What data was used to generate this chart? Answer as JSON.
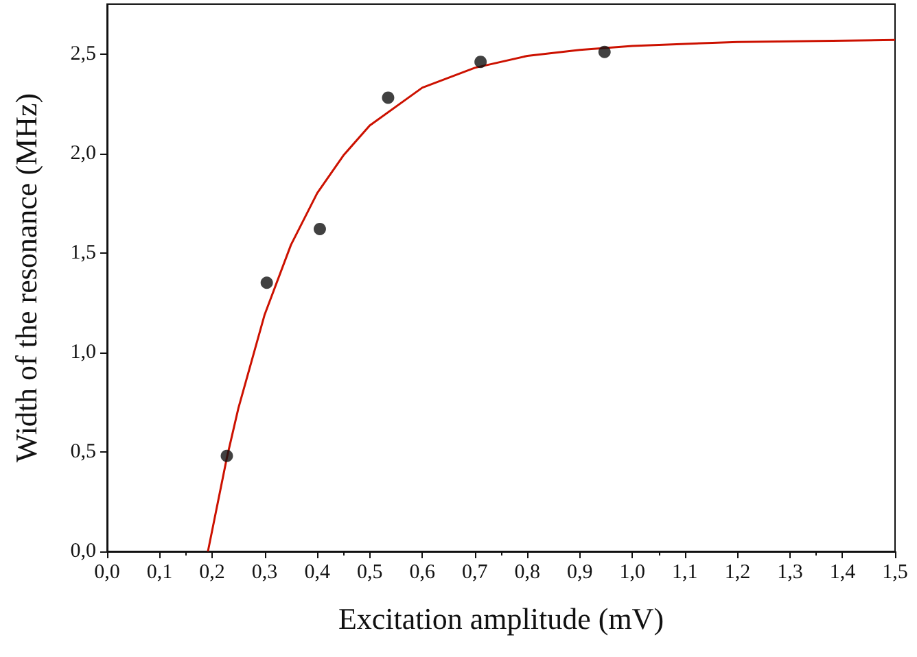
{
  "chart_data": {
    "type": "scatter",
    "xlabel": "Excitation amplitude (mV)",
    "ylabel": "Width of the resonance (MHz)",
    "xlim": [
      0,
      1.5
    ],
    "ylim": [
      0,
      2.75
    ],
    "xticks": [
      {
        "value": 0,
        "label": "0,0"
      },
      {
        "value": 0.1,
        "label": "0,1"
      },
      {
        "value": 0.2,
        "label": "0,2"
      },
      {
        "value": 0.3,
        "label": "0,3"
      },
      {
        "value": 0.4,
        "label": "0,4"
      },
      {
        "value": 0.5,
        "label": "0,5"
      },
      {
        "value": 0.6,
        "label": "0,6"
      },
      {
        "value": 0.7,
        "label": "0,7"
      },
      {
        "value": 0.8,
        "label": "0,8"
      },
      {
        "value": 0.9,
        "label": "0,9"
      },
      {
        "value": 1.0,
        "label": "1,0"
      },
      {
        "value": 1.1,
        "label": "1,1"
      },
      {
        "value": 1.2,
        "label": "1,2"
      },
      {
        "value": 1.3,
        "label": "1,3"
      },
      {
        "value": 1.4,
        "label": "1,4"
      },
      {
        "value": 1.5,
        "label": "1,5"
      }
    ],
    "yticks": [
      {
        "value": 0,
        "label": "0,0"
      },
      {
        "value": 0.5,
        "label": "0,5"
      },
      {
        "value": 1.0,
        "label": "1,0"
      },
      {
        "value": 1.5,
        "label": "1,5"
      },
      {
        "value": 2.0,
        "label": "2,0"
      },
      {
        "value": 2.5,
        "label": "2,5"
      }
    ],
    "grid": false,
    "marker": "circle",
    "series": [
      {
        "color": "#111111",
        "x": [
          0.228,
          0.304,
          0.405,
          0.535,
          0.711,
          0.947
        ],
        "values": [
          0.48,
          1.35,
          1.62,
          2.28,
          2.46,
          2.51
        ]
      },
      {
        "type": "line",
        "color": "#cc1100",
        "marker": "none",
        "x": [
          0.192,
          0.228,
          0.25,
          0.3,
          0.35,
          0.4,
          0.45,
          0.5,
          0.6,
          0.7,
          0.8,
          0.9,
          1.0,
          1.2,
          1.5
        ],
        "values": [
          0,
          0.47,
          0.72,
          1.19,
          1.54,
          1.8,
          1.99,
          2.14,
          2.33,
          2.43,
          2.49,
          2.52,
          2.54,
          2.56,
          2.57
        ]
      }
    ]
  }
}
